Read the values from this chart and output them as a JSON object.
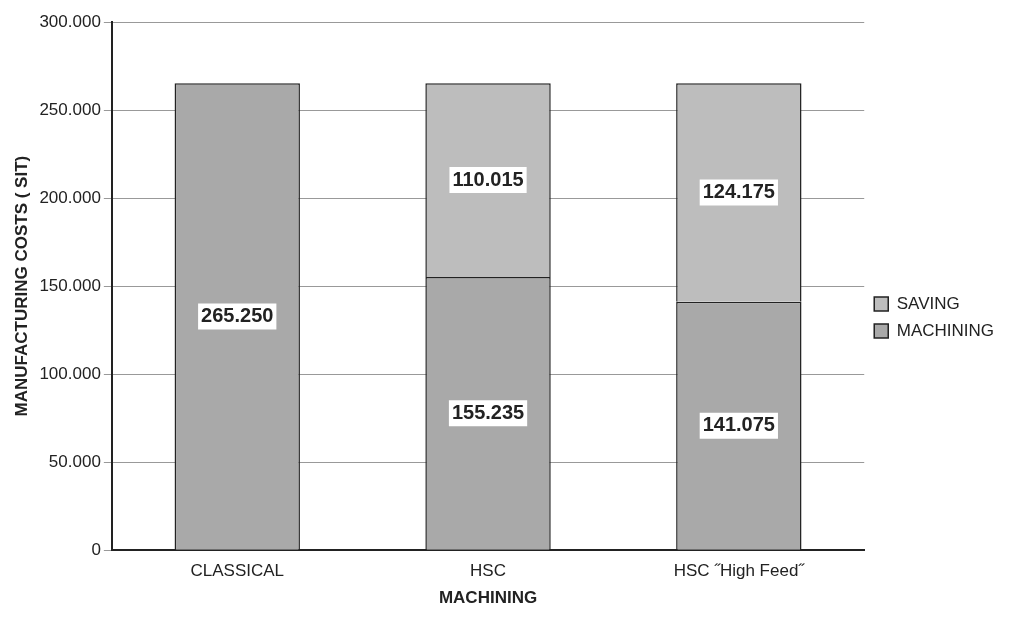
{
  "chart_data": {
    "type": "bar",
    "stacked": true,
    "xlabel": "MACHINING",
    "ylabel": "MANUFACTURING COSTS ( SIT)",
    "categories": [
      "CLASSICAL",
      "HSC",
      "HSC ˝High Feed˝"
    ],
    "series": [
      {
        "name": "MACHINING",
        "color": "#a9a9a9",
        "values": [
          265250,
          155235,
          141075
        ],
        "value_labels": [
          "265.250",
          "155.235",
          "141.075"
        ]
      },
      {
        "name": "SAVING",
        "color": "#bdbdbd",
        "values": [
          null,
          110015,
          124175
        ],
        "value_labels": [
          null,
          "110.015",
          "124.175"
        ]
      }
    ],
    "ylim": [
      0,
      300000
    ],
    "yticks": [
      0,
      {
        "value": 50000,
        "label": "50.000"
      },
      {
        "value": 100000,
        "label": "100.000"
      },
      {
        "value": 150000,
        "label": "150.000"
      },
      {
        "value": 200000,
        "label": "200.000"
      },
      {
        "value": 250000,
        "label": "250.000"
      },
      {
        "value": 300000,
        "label": "300.000"
      }
    ],
    "grid": "y",
    "legend": "right"
  }
}
